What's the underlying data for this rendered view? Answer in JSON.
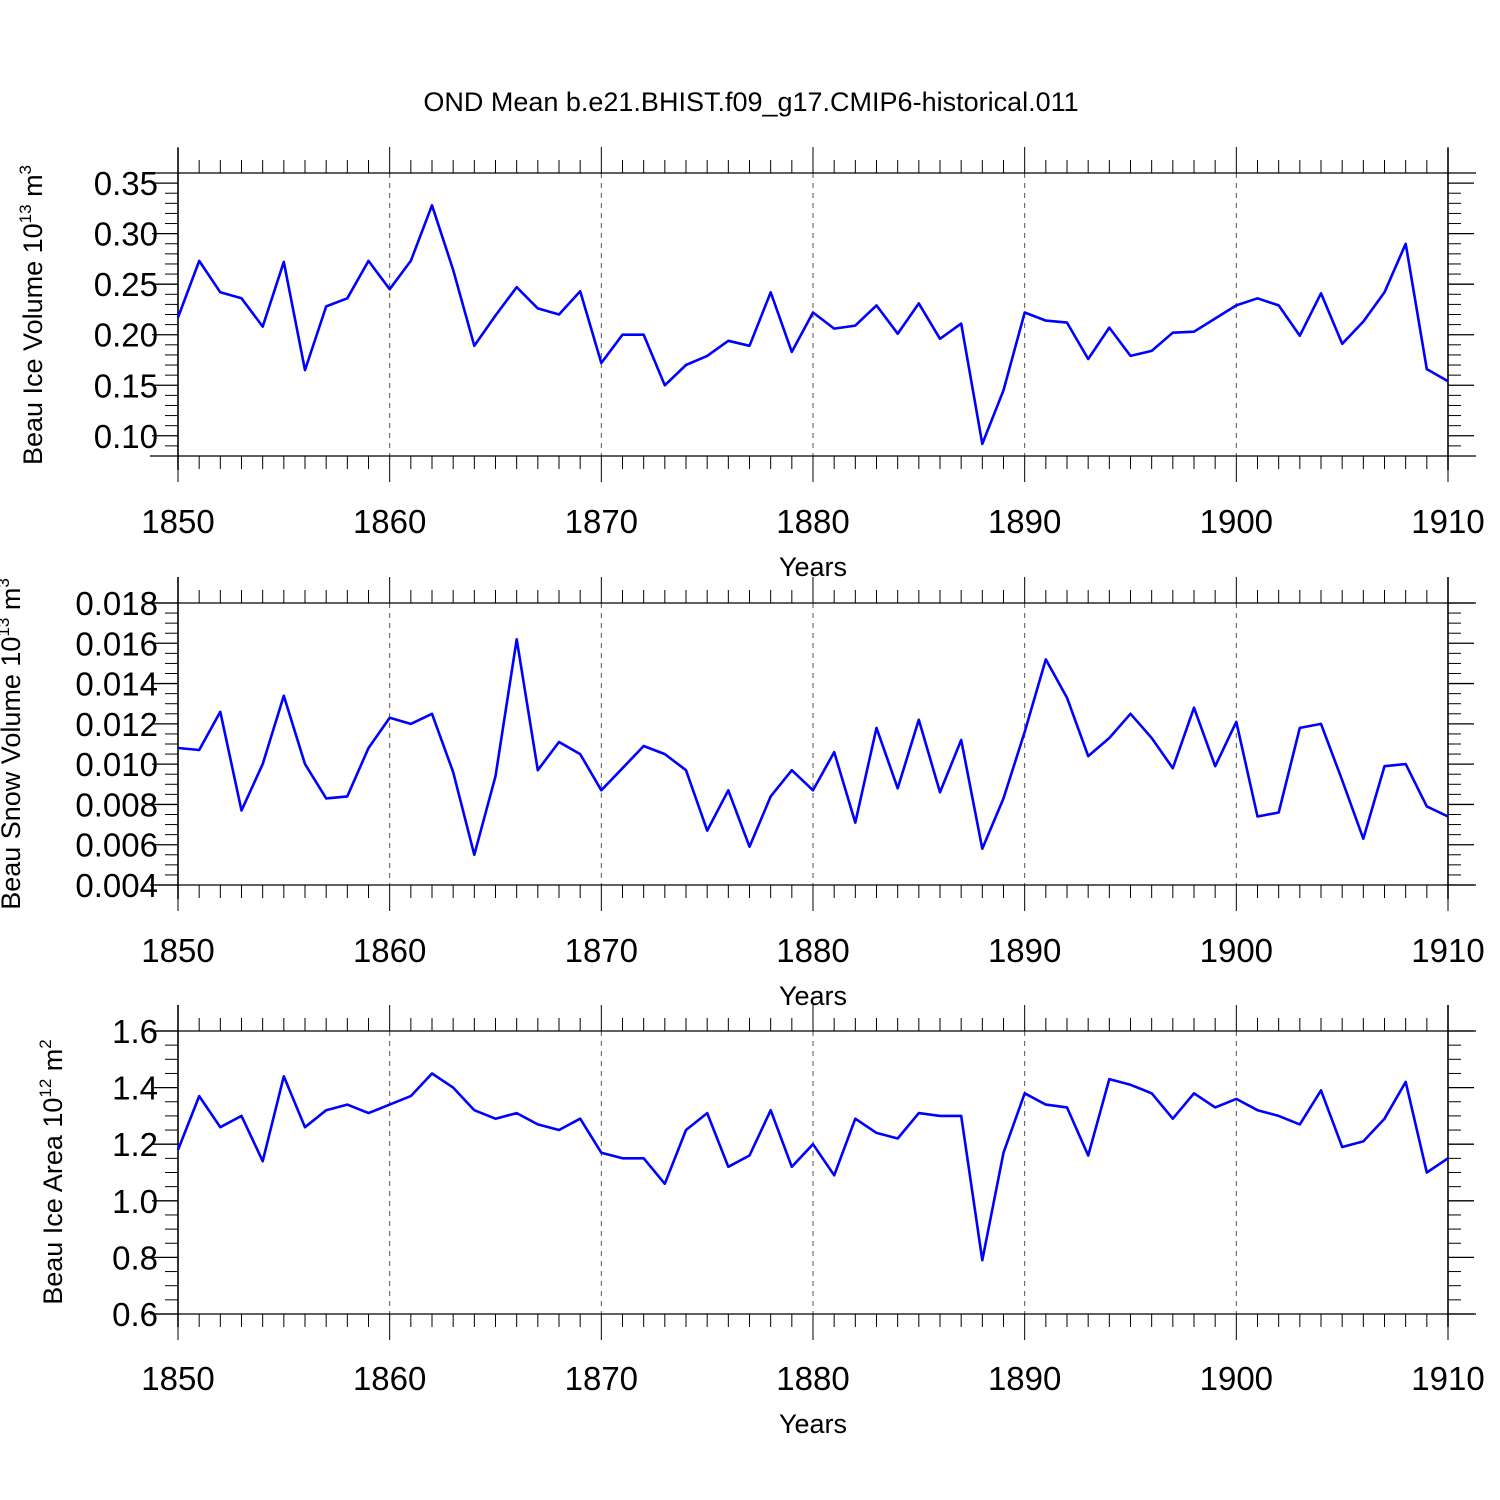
{
  "title": "OND Mean b.e21.BHIST.f09_g17.CMIP6-historical.011",
  "colors": {
    "line": "#0000ff",
    "axis": "#000000",
    "grid": "#555555"
  },
  "chart_data": [
    {
      "type": "line",
      "title": "OND Mean b.e21.BHIST.f09_g17.CMIP6-historical.011",
      "xlabel": "Years",
      "ylabel": {
        "base": "Beau Ice Volume 10",
        "exp": "13",
        "unit": " m",
        "unit_exp": "3"
      },
      "xlim": [
        1850,
        1910
      ],
      "ylim": [
        0.08,
        0.36
      ],
      "xticks": [
        1850,
        1860,
        1870,
        1880,
        1890,
        1900,
        1910
      ],
      "xtick_labels": [
        "1850",
        "1860",
        "1870",
        "1880",
        "1890",
        "1900",
        "1910"
      ],
      "yticks": [
        0.1,
        0.15,
        0.2,
        0.25,
        0.3,
        0.35
      ],
      "ytick_labels": [
        "0.10",
        "0.15",
        "0.20",
        "0.25",
        "0.30",
        "0.35"
      ],
      "yminor_step": 0.01,
      "x": [
        1850,
        1851,
        1852,
        1853,
        1854,
        1855,
        1856,
        1857,
        1858,
        1859,
        1860,
        1861,
        1862,
        1863,
        1864,
        1865,
        1866,
        1867,
        1868,
        1869,
        1870,
        1871,
        1872,
        1873,
        1874,
        1875,
        1876,
        1877,
        1878,
        1879,
        1880,
        1881,
        1882,
        1883,
        1884,
        1885,
        1886,
        1887,
        1888,
        1889,
        1890,
        1891,
        1892,
        1893,
        1894,
        1895,
        1896,
        1897,
        1898,
        1899,
        1900,
        1901,
        1902,
        1903,
        1904,
        1905,
        1906,
        1907,
        1908,
        1909,
        1910
      ],
      "series": [
        {
          "name": "Beau Ice Volume",
          "values": [
            0.217,
            0.273,
            0.242,
            0.236,
            0.208,
            0.272,
            0.165,
            0.228,
            0.236,
            0.273,
            0.245,
            0.273,
            0.328,
            0.264,
            0.189,
            0.219,
            0.247,
            0.226,
            0.22,
            0.243,
            0.172,
            0.2,
            0.2,
            0.15,
            0.17,
            0.179,
            0.194,
            0.189,
            0.242,
            0.183,
            0.222,
            0.206,
            0.209,
            0.229,
            0.201,
            0.231,
            0.196,
            0.211,
            0.092,
            0.145,
            0.222,
            0.214,
            0.212,
            0.176,
            0.207,
            0.179,
            0.184,
            0.202,
            0.203,
            0.216,
            0.229,
            0.236,
            0.229,
            0.199,
            0.241,
            0.191,
            0.213,
            0.242,
            0.29,
            0.166,
            0.154
          ]
        }
      ]
    },
    {
      "type": "line",
      "xlabel": "Years",
      "ylabel": {
        "base": "Beau Snow Volume 10",
        "exp": "13",
        "unit": " m",
        "unit_exp": "3"
      },
      "xlim": [
        1850,
        1910
      ],
      "ylim": [
        0.004,
        0.018
      ],
      "xticks": [
        1850,
        1860,
        1870,
        1880,
        1890,
        1900,
        1910
      ],
      "xtick_labels": [
        "1850",
        "1860",
        "1870",
        "1880",
        "1890",
        "1900",
        "1910"
      ],
      "yticks": [
        0.004,
        0.006,
        0.008,
        0.01,
        0.012,
        0.014,
        0.016,
        0.018
      ],
      "ytick_labels": [
        "0.004",
        "0.006",
        "0.008",
        "0.010",
        "0.012",
        "0.014",
        "0.016",
        "0.018"
      ],
      "yminor_step": 0.0005,
      "x": [
        1850,
        1851,
        1852,
        1853,
        1854,
        1855,
        1856,
        1857,
        1858,
        1859,
        1860,
        1861,
        1862,
        1863,
        1864,
        1865,
        1866,
        1867,
        1868,
        1869,
        1870,
        1871,
        1872,
        1873,
        1874,
        1875,
        1876,
        1877,
        1878,
        1879,
        1880,
        1881,
        1882,
        1883,
        1884,
        1885,
        1886,
        1887,
        1888,
        1889,
        1890,
        1891,
        1892,
        1893,
        1894,
        1895,
        1896,
        1897,
        1898,
        1899,
        1900,
        1901,
        1902,
        1903,
        1904,
        1905,
        1906,
        1907,
        1908,
        1909,
        1910
      ],
      "series": [
        {
          "name": "Beau Snow Volume",
          "values": [
            0.0108,
            0.0107,
            0.0126,
            0.0077,
            0.01,
            0.0134,
            0.01,
            0.0083,
            0.0084,
            0.0108,
            0.0123,
            0.012,
            0.0125,
            0.0096,
            0.0055,
            0.0094,
            0.0162,
            0.0097,
            0.0111,
            0.0105,
            0.0087,
            0.0098,
            0.0109,
            0.0105,
            0.0097,
            0.0067,
            0.0087,
            0.0059,
            0.0084,
            0.0097,
            0.0087,
            0.0106,
            0.0071,
            0.0118,
            0.0088,
            0.0122,
            0.0086,
            0.0112,
            0.0058,
            0.0083,
            0.0116,
            0.0152,
            0.0133,
            0.0104,
            0.0113,
            0.0125,
            0.0113,
            0.0098,
            0.0128,
            0.0099,
            0.0121,
            0.0074,
            0.0076,
            0.0118,
            0.012,
            0.0092,
            0.0063,
            0.0099,
            0.01,
            0.0079,
            0.0074
          ]
        }
      ]
    },
    {
      "type": "line",
      "xlabel": "Years",
      "ylabel": {
        "base": "Beau Ice Area 10",
        "exp": "12",
        "unit": " m",
        "unit_exp": "2"
      },
      "xlim": [
        1850,
        1910
      ],
      "ylim": [
        0.6,
        1.6
      ],
      "xticks": [
        1850,
        1860,
        1870,
        1880,
        1890,
        1900,
        1910
      ],
      "xtick_labels": [
        "1850",
        "1860",
        "1870",
        "1880",
        "1890",
        "1900",
        "1910"
      ],
      "yticks": [
        0.6,
        0.8,
        1.0,
        1.2,
        1.4,
        1.6
      ],
      "ytick_labels": [
        "0.6",
        "0.8",
        "1.0",
        "1.2",
        "1.4",
        "1.6"
      ],
      "yminor_step": 0.05,
      "x": [
        1850,
        1851,
        1852,
        1853,
        1854,
        1855,
        1856,
        1857,
        1858,
        1859,
        1860,
        1861,
        1862,
        1863,
        1864,
        1865,
        1866,
        1867,
        1868,
        1869,
        1870,
        1871,
        1872,
        1873,
        1874,
        1875,
        1876,
        1877,
        1878,
        1879,
        1880,
        1881,
        1882,
        1883,
        1884,
        1885,
        1886,
        1887,
        1888,
        1889,
        1890,
        1891,
        1892,
        1893,
        1894,
        1895,
        1896,
        1897,
        1898,
        1899,
        1900,
        1901,
        1902,
        1903,
        1904,
        1905,
        1906,
        1907,
        1908,
        1909,
        1910
      ],
      "series": [
        {
          "name": "Beau Ice Area",
          "values": [
            1.18,
            1.37,
            1.26,
            1.3,
            1.14,
            1.44,
            1.26,
            1.32,
            1.34,
            1.31,
            1.34,
            1.37,
            1.45,
            1.4,
            1.32,
            1.29,
            1.31,
            1.27,
            1.25,
            1.29,
            1.17,
            1.15,
            1.15,
            1.06,
            1.25,
            1.31,
            1.12,
            1.16,
            1.32,
            1.12,
            1.2,
            1.09,
            1.29,
            1.24,
            1.22,
            1.31,
            1.3,
            1.3,
            0.79,
            1.17,
            1.38,
            1.34,
            1.33,
            1.16,
            1.43,
            1.41,
            1.38,
            1.29,
            1.38,
            1.33,
            1.36,
            1.32,
            1.3,
            1.27,
            1.39,
            1.19,
            1.21,
            1.29,
            1.42,
            1.1,
            1.15
          ]
        }
      ]
    }
  ]
}
